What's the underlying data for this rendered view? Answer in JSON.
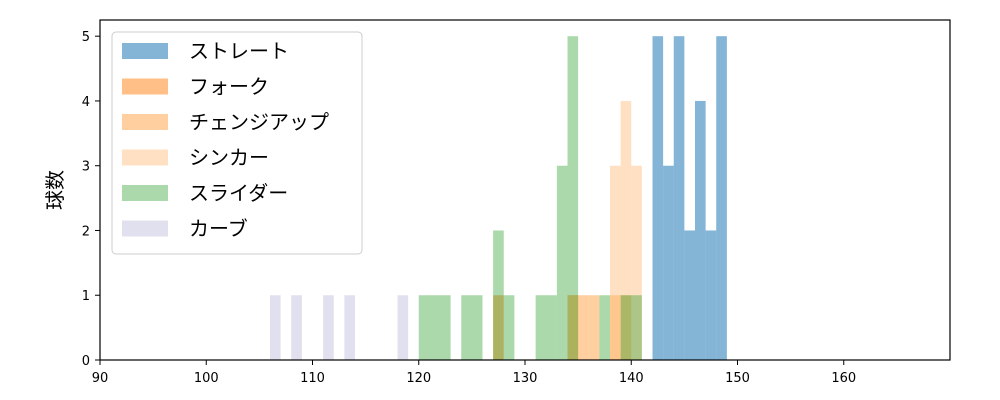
{
  "chart_data": {
    "type": "bar",
    "title": "",
    "xlabel": "",
    "ylabel": "球数",
    "xlim": [
      90,
      170
    ],
    "ylim": [
      0,
      5.25
    ],
    "xticks": [
      90,
      100,
      110,
      120,
      130,
      140,
      150,
      160
    ],
    "yticks": [
      0,
      1,
      2,
      3,
      4,
      5
    ],
    "grid": false,
    "legend_position": "top-left",
    "series": [
      {
        "name": "ストレート",
        "color": "#1f77b4",
        "alpha": 0.55,
        "bins": [
          {
            "x0": 142.0,
            "x1": 143.0,
            "count": 5
          },
          {
            "x0": 143.0,
            "x1": 144.0,
            "count": 3
          },
          {
            "x0": 144.0,
            "x1": 145.0,
            "count": 5
          },
          {
            "x0": 145.0,
            "x1": 146.0,
            "count": 2
          },
          {
            "x0": 146.0,
            "x1": 147.0,
            "count": 4
          },
          {
            "x0": 147.0,
            "x1": 148.0,
            "count": 2
          },
          {
            "x0": 148.0,
            "x1": 149.0,
            "count": 5
          }
        ]
      },
      {
        "name": "フォーク",
        "color": "#ff7f0e",
        "alpha": 0.5,
        "bins": [
          {
            "x0": 127.0,
            "x1": 128.0,
            "count": 1
          },
          {
            "x0": 134.0,
            "x1": 135.0,
            "count": 1
          }
        ]
      },
      {
        "name": "チェンジアップ",
        "color": "#ffbb78",
        "alpha": 0.7,
        "bins": [
          {
            "x0": 134.0,
            "x1": 136.0,
            "count": 1
          },
          {
            "x0": 136.0,
            "x1": 137.0,
            "count": 1
          },
          {
            "x0": 138.0,
            "x1": 139.0,
            "count": 1
          },
          {
            "x0": 139.0,
            "x1": 140.0,
            "count": 1
          }
        ]
      },
      {
        "name": "シンカー",
        "color": "#ffbb78",
        "alpha": 0.45,
        "bins": [
          {
            "x0": 138.0,
            "x1": 139.0,
            "count": 3
          },
          {
            "x0": 139.0,
            "x1": 140.0,
            "count": 4
          },
          {
            "x0": 140.0,
            "x1": 141.0,
            "count": 3
          }
        ]
      },
      {
        "name": "スライダー",
        "color": "#2ca02c",
        "alpha": 0.4,
        "bins": [
          {
            "x0": 120.0,
            "x1": 123.0,
            "count": 1
          },
          {
            "x0": 124.0,
            "x1": 126.0,
            "count": 1
          },
          {
            "x0": 127.0,
            "x1": 128.0,
            "count": 2
          },
          {
            "x0": 128.0,
            "x1": 129.0,
            "count": 1
          },
          {
            "x0": 131.0,
            "x1": 133.0,
            "count": 1
          },
          {
            "x0": 133.0,
            "x1": 134.0,
            "count": 3
          },
          {
            "x0": 134.0,
            "x1": 135.0,
            "count": 5
          },
          {
            "x0": 137.0,
            "x1": 138.0,
            "count": 1
          },
          {
            "x0": 139.0,
            "x1": 141.0,
            "count": 1
          }
        ]
      },
      {
        "name": "カーブ",
        "color": "#c7c7e0",
        "alpha": 0.55,
        "bins": [
          {
            "x0": 106.0,
            "x1": 107.0,
            "count": 1
          },
          {
            "x0": 108.0,
            "x1": 109.0,
            "count": 1
          },
          {
            "x0": 111.0,
            "x1": 112.0,
            "count": 1
          },
          {
            "x0": 113.0,
            "x1": 114.0,
            "count": 1
          },
          {
            "x0": 118.0,
            "x1": 119.0,
            "count": 1
          }
        ]
      }
    ]
  }
}
